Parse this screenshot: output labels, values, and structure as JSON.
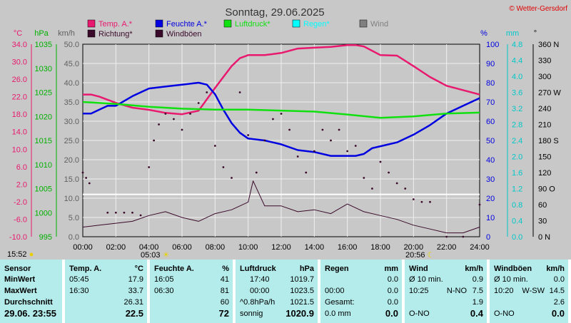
{
  "chart_data": {
    "type": "line",
    "title": "Sonntag, 29.06.2025",
    "credit": "© Wetter-Gersdorf",
    "x_ticks": [
      "00:00",
      "02:00",
      "04:00",
      "06:00",
      "08:00",
      "10:00",
      "12:00",
      "14:00",
      "16:00",
      "18:00",
      "20:00",
      "22:00",
      "24:00"
    ],
    "axes": {
      "temp": {
        "label": "°C",
        "ticks": [
          "34.0",
          "30.0",
          "26.0",
          "22.0",
          "18.0",
          "14.0",
          "10.0",
          "6.0",
          "2.0",
          "-2.0",
          "-6.0",
          "-10.0"
        ],
        "range": [
          -10,
          34
        ],
        "color": "#e8196e"
      },
      "hpa": {
        "label": "hPa",
        "ticks": [
          "1035",
          "1030",
          "1025",
          "1020",
          "1015",
          "1010",
          "1005",
          "1000",
          "995"
        ],
        "range": [
          995,
          1035
        ],
        "color": "#00b000"
      },
      "kmh": {
        "label": "km/h",
        "ticks": [
          "50.0",
          "45.0",
          "40.0",
          "35.0",
          "30.0",
          "25.0",
          "20.0",
          "15.0",
          "10.0",
          "5.0",
          "0.0"
        ],
        "range": [
          0,
          50
        ],
        "color": "#606060"
      },
      "pct": {
        "label": "%",
        "ticks": [
          "100",
          "90",
          "80",
          "70",
          "60",
          "50",
          "40",
          "30",
          "20",
          "10",
          "0"
        ],
        "range": [
          0,
          100
        ],
        "color": "#0000e0"
      },
      "mm": {
        "label": "mm",
        "ticks": [
          "4.8",
          "4.4",
          "4.0",
          "3.6",
          "3.2",
          "2.8",
          "2.4",
          "2.0",
          "1.6",
          "1.2",
          "0.8",
          "0.4",
          "0.0"
        ],
        "range": [
          0,
          4.8
        ],
        "color": "#00c8c8"
      },
      "deg": {
        "label": "°",
        "ticks": [
          "360 N",
          "330",
          "300",
          "270 W",
          "240",
          "210",
          "180 S",
          "150",
          "120",
          "90 O",
          "60",
          "30",
          "0 N"
        ],
        "range": [
          0,
          360
        ],
        "color": "#000000"
      }
    },
    "legend": [
      {
        "name": "Temp. A.*",
        "color": "#e8196e"
      },
      {
        "name": "Feuchte A.*",
        "color": "#0000e0"
      },
      {
        "name": "Luftdruck*",
        "color": "#10e010"
      },
      {
        "name": "Regen*",
        "color": "#00ffff"
      },
      {
        "name": "Wind",
        "color": "#808080"
      },
      {
        "name": "Richtung*",
        "color": "#3a0a2a"
      },
      {
        "name": "Windböen",
        "color": "#3a0a2a"
      }
    ],
    "series": [
      {
        "name": "Temp. A.*",
        "axis": "temp",
        "x": [
          0,
          0.5,
          1,
          1.5,
          2,
          3,
          4,
          5,
          6,
          7,
          8,
          8.5,
          9,
          9.5,
          10,
          11,
          12,
          13,
          14,
          15,
          16,
          16.5,
          17,
          18,
          19,
          20,
          21,
          22,
          23,
          24
        ],
        "values": [
          22.5,
          22.5,
          22.0,
          21.3,
          20.6,
          19.5,
          19.0,
          18.3,
          18.0,
          18.8,
          24.0,
          26.5,
          29.0,
          30.8,
          31.5,
          31.5,
          32.0,
          33.0,
          33.2,
          33.4,
          33.8,
          33.8,
          33.5,
          31.5,
          31.4,
          29.0,
          26.5,
          24.5,
          23.5,
          22.5
        ]
      },
      {
        "name": "Feuchte A.*",
        "axis": "pct",
        "x": [
          0,
          0.5,
          1,
          1.5,
          2,
          3,
          4,
          5,
          6,
          7,
          7.5,
          8,
          8.5,
          9,
          9.5,
          10,
          11,
          12,
          13,
          14,
          15,
          16,
          16.5,
          17,
          17.5,
          18,
          19,
          20,
          21,
          22,
          23,
          24
        ],
        "values": [
          64,
          64,
          66,
          68,
          68,
          73,
          77,
          78,
          79,
          80,
          79,
          74,
          66,
          59,
          54,
          51,
          50,
          48,
          45,
          44,
          42,
          42,
          42,
          43,
          46,
          47,
          49,
          53,
          58,
          64,
          68,
          72
        ]
      },
      {
        "name": "Luftdruck*",
        "axis": "hpa",
        "x": [
          0,
          2,
          4,
          6,
          8,
          10,
          12,
          14,
          16,
          18,
          20,
          22,
          24
        ],
        "values": [
          1023.0,
          1022.6,
          1022.0,
          1021.6,
          1021.4,
          1021.4,
          1021.2,
          1021.0,
          1020.4,
          1019.7,
          1020.0,
          1020.6,
          1020.8
        ]
      },
      {
        "name": "Windböen",
        "axis": "kmh",
        "x": [
          0,
          1,
          2,
          3,
          4,
          5,
          6,
          7,
          8,
          9,
          10,
          10.3,
          11,
          12,
          13,
          14,
          15,
          16,
          17,
          18,
          19,
          20,
          21,
          22,
          23,
          24
        ],
        "values": [
          2.5,
          3.0,
          3.5,
          4.0,
          5.5,
          6.5,
          5.0,
          4.0,
          6.0,
          7.0,
          9.0,
          14.5,
          8.0,
          8.0,
          6.5,
          7.0,
          6.0,
          8.5,
          6.5,
          5.5,
          4.5,
          3.0,
          2.0,
          1.0,
          1.0,
          2.5
        ]
      },
      {
        "name": "Richtung*",
        "axis": "deg",
        "type": "scatter",
        "x": [
          0,
          0.2,
          0.4,
          1.5,
          2,
          2.5,
          3,
          3.5,
          4,
          4.3,
          4.6,
          5,
          5.5,
          6,
          6.5,
          7,
          7.5,
          8,
          8.5,
          9,
          9.5,
          10,
          10.5,
          11,
          11.5,
          12,
          12.5,
          13,
          13.5,
          14,
          14.5,
          15,
          15.5,
          16,
          16.5,
          17,
          17.5,
          18,
          18.5,
          19,
          19.5,
          20,
          20.5,
          21,
          22,
          23,
          24
        ],
        "values": [
          120,
          110,
          100,
          45,
          45,
          45,
          45,
          40,
          130,
          180,
          210,
          230,
          220,
          200,
          230,
          250,
          270,
          170,
          130,
          110,
          270,
          190,
          120,
          180,
          220,
          230,
          200,
          150,
          120,
          160,
          200,
          180,
          200,
          160,
          170,
          110,
          90,
          140,
          120,
          100,
          90,
          70,
          65,
          65,
          0,
          0,
          60
        ]
      }
    ],
    "reference_line": {
      "axis": "kmh",
      "value": 11.0
    },
    "markers": {
      "left_time": "15:52",
      "sunrise": "05:03",
      "sunset": "20:56"
    }
  },
  "table": {
    "sensor": {
      "header": "Sensor",
      "rows": [
        "MinWert",
        "MaxWert",
        "Durchschnitt",
        "29.06. 23:55"
      ]
    },
    "temp": {
      "header": "Temp. A.",
      "unit": "°C",
      "min_time": "05:45",
      "min": "17.9",
      "max_time": "16:30",
      "max": "33.7",
      "avg": "26.31",
      "current": "22.5"
    },
    "hum": {
      "header": "Feuchte A.",
      "unit": "%",
      "min_time": "16:05",
      "min": "41",
      "max_time": "06:30",
      "max": "81",
      "avg": "60",
      "current": "72"
    },
    "press": {
      "header": "Luftdruck",
      "unit": "hPa",
      "min_time": "17:40",
      "min": "1019.7",
      "max_time": "00:00",
      "max": "1023.5",
      "trend": "^0.8hPa/h",
      "avg": "1021.5",
      "weather": "sonnig",
      "current": "1020.9"
    },
    "rain": {
      "header": "Regen",
      "unit": "mm",
      "v1": "0.0",
      "t2": "00:00",
      "v2": "0.0",
      "l3": "Gesamt:",
      "v3": "0.0",
      "rate": "0.0 mm",
      "current": "0.0"
    },
    "wind": {
      "header": "Wind",
      "unit": "km/h",
      "l1": "Ø 10 min.",
      "v1": "0.9",
      "t2": "10:25",
      "d2": "N-NO",
      "v2": "7.5",
      "v3": "1.9",
      "d4": "O-NO",
      "current": "0.4"
    },
    "gust": {
      "header": "Windböen",
      "unit": "km/h",
      "l1": "Ø 10 min.",
      "v1": "0.0",
      "t2": "10:20",
      "d2": "W-SW",
      "v2": "14.5",
      "v3": "2.6",
      "d4": "O-NO",
      "current": "0.0"
    }
  }
}
